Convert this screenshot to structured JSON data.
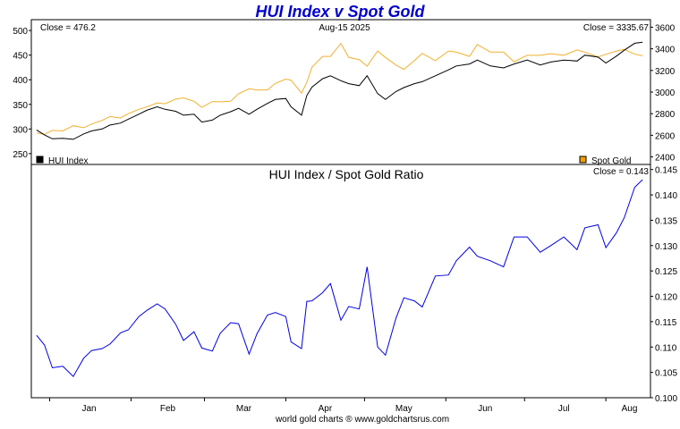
{
  "title": "HUI Index v Spot Gold",
  "footer": "world gold charts ® www.goldchartsrus.com",
  "colors": {
    "hui": "#000000",
    "gold": "#f0b030",
    "ratio": "#0000dd",
    "title": "#0000cc",
    "gold_legend": "#f0a000"
  },
  "chart_data": [
    {
      "type": "line",
      "top_left_label": "Close = 476.2",
      "date_label": "Aug-15  2025",
      "top_right_label": "Close = 3335.67",
      "x_ticks": [
        "Jan",
        "Feb",
        "Mar",
        "Apr",
        "May",
        "Jun",
        "Jul",
        "Aug"
      ],
      "y_left_ticks": [
        "250",
        "300",
        "350",
        "400",
        "450",
        "500"
      ],
      "y_left_range": [
        228,
        522
      ],
      "y_right_ticks": [
        "2400",
        "2600",
        "2800",
        "3000",
        "3200",
        "3400",
        "3600"
      ],
      "y_right_range": [
        2330,
        3670
      ],
      "series": [
        {
          "name": "HUI Index",
          "axis": "left",
          "x": [
            "2024-12-27",
            "2024-12-30",
            "2025-01-02",
            "2025-01-06",
            "2025-01-10",
            "2025-01-14",
            "2025-01-17",
            "2025-01-21",
            "2025-01-24",
            "2025-01-28",
            "2025-01-31",
            "2025-02-04",
            "2025-02-07",
            "2025-02-11",
            "2025-02-14",
            "2025-02-18",
            "2025-02-21",
            "2025-02-25",
            "2025-02-28",
            "2025-03-04",
            "2025-03-07",
            "2025-03-11",
            "2025-03-14",
            "2025-03-18",
            "2025-03-21",
            "2025-03-25",
            "2025-03-28",
            "2025-04-01",
            "2025-04-03",
            "2025-04-07",
            "2025-04-09",
            "2025-04-11",
            "2025-04-15",
            "2025-04-18",
            "2025-04-22",
            "2025-04-25",
            "2025-04-29",
            "2025-05-02",
            "2025-05-06",
            "2025-05-09",
            "2025-05-13",
            "2025-05-16",
            "2025-05-20",
            "2025-05-23",
            "2025-05-28",
            "2025-06-02",
            "2025-06-05",
            "2025-06-10",
            "2025-06-13",
            "2025-06-18",
            "2025-06-23",
            "2025-06-27",
            "2025-07-02",
            "2025-07-07",
            "2025-07-11",
            "2025-07-16",
            "2025-07-21",
            "2025-07-24",
            "2025-07-29",
            "2025-08-01",
            "2025-08-05",
            "2025-08-08",
            "2025-08-12",
            "2025-08-15"
          ],
          "values": [
            298,
            288,
            280,
            281,
            279,
            290,
            296,
            300,
            308,
            312,
            320,
            330,
            338,
            345,
            340,
            336,
            328,
            330,
            314,
            318,
            328,
            335,
            342,
            330,
            340,
            352,
            360,
            362,
            345,
            328,
            368,
            385,
            402,
            408,
            398,
            392,
            388,
            408,
            372,
            360,
            376,
            384,
            392,
            396,
            408,
            420,
            428,
            432,
            440,
            428,
            424,
            432,
            440,
            430,
            436,
            440,
            438,
            450,
            446,
            434,
            448,
            460,
            474,
            476.2
          ]
        },
        {
          "name": "Spot Gold",
          "axis": "right",
          "x": [
            "2024-12-27",
            "2024-12-30",
            "2025-01-02",
            "2025-01-06",
            "2025-01-10",
            "2025-01-14",
            "2025-01-17",
            "2025-01-21",
            "2025-01-24",
            "2025-01-28",
            "2025-01-31",
            "2025-02-04",
            "2025-02-07",
            "2025-02-11",
            "2025-02-14",
            "2025-02-18",
            "2025-02-21",
            "2025-02-25",
            "2025-02-28",
            "2025-03-04",
            "2025-03-07",
            "2025-03-11",
            "2025-03-14",
            "2025-03-18",
            "2025-03-21",
            "2025-03-25",
            "2025-03-28",
            "2025-04-01",
            "2025-04-03",
            "2025-04-07",
            "2025-04-09",
            "2025-04-11",
            "2025-04-15",
            "2025-04-18",
            "2025-04-22",
            "2025-04-25",
            "2025-04-29",
            "2025-05-02",
            "2025-05-06",
            "2025-05-09",
            "2025-05-13",
            "2025-05-16",
            "2025-05-20",
            "2025-05-23",
            "2025-05-28",
            "2025-06-02",
            "2025-06-05",
            "2025-06-10",
            "2025-06-13",
            "2025-06-18",
            "2025-06-23",
            "2025-06-27",
            "2025-07-02",
            "2025-07-07",
            "2025-07-11",
            "2025-07-16",
            "2025-07-21",
            "2025-07-24",
            "2025-07-29",
            "2025-08-01",
            "2025-08-05",
            "2025-08-08",
            "2025-08-12",
            "2025-08-15"
          ],
          "values": [
            2622,
            2608,
            2645,
            2640,
            2688,
            2670,
            2704,
            2738,
            2773,
            2760,
            2800,
            2840,
            2862,
            2900,
            2892,
            2935,
            2946,
            2915,
            2858,
            2912,
            2910,
            2915,
            2984,
            3030,
            3020,
            3020,
            3080,
            3120,
            3110,
            2990,
            3090,
            3230,
            3330,
            3330,
            3450,
            3320,
            3300,
            3240,
            3380,
            3320,
            3250,
            3210,
            3290,
            3358,
            3290,
            3380,
            3370,
            3330,
            3440,
            3370,
            3370,
            3280,
            3340,
            3340,
            3355,
            3340,
            3390,
            3370,
            3325,
            3350,
            3380,
            3395,
            3350,
            3335.67
          ]
        }
      ],
      "legend": [
        "HUI Index",
        "Spot Gold"
      ],
      "grid": false
    },
    {
      "type": "line",
      "title": "HUI Index  /  Spot Gold Ratio",
      "top_right_label": "Close = 0.143",
      "x_ticks": [
        "Jan",
        "Feb",
        "Mar",
        "Apr",
        "May",
        "Jun",
        "Jul",
        "Aug"
      ],
      "y_right_ticks": [
        "0.100",
        "0.105",
        "0.110",
        "0.115",
        "0.120",
        "0.125",
        "0.130",
        "0.135",
        "0.140",
        "0.145"
      ],
      "y_range": [
        0.1,
        0.146
      ],
      "series": [
        {
          "x": [
            "2024-12-27",
            "2024-12-30",
            "2025-01-02",
            "2025-01-06",
            "2025-01-10",
            "2025-01-14",
            "2025-01-17",
            "2025-01-21",
            "2025-01-24",
            "2025-01-28",
            "2025-01-31",
            "2025-02-04",
            "2025-02-07",
            "2025-02-11",
            "2025-02-14",
            "2025-02-18",
            "2025-02-21",
            "2025-02-25",
            "2025-02-28",
            "2025-03-04",
            "2025-03-07",
            "2025-03-11",
            "2025-03-14",
            "2025-03-18",
            "2025-03-21",
            "2025-03-25",
            "2025-03-28",
            "2025-04-01",
            "2025-04-03",
            "2025-04-07",
            "2025-04-09",
            "2025-04-11",
            "2025-04-15",
            "2025-04-18",
            "2025-04-22",
            "2025-04-25",
            "2025-04-29",
            "2025-05-02",
            "2025-05-06",
            "2025-05-09",
            "2025-05-13",
            "2025-05-16",
            "2025-05-20",
            "2025-05-23",
            "2025-05-28",
            "2025-06-02",
            "2025-06-05",
            "2025-06-10",
            "2025-06-13",
            "2025-06-18",
            "2025-06-23",
            "2025-06-27",
            "2025-07-02",
            "2025-07-07",
            "2025-07-11",
            "2025-07-16",
            "2025-07-21",
            "2025-07-24",
            "2025-07-29",
            "2025-08-01",
            "2025-08-05",
            "2025-08-08",
            "2025-08-12",
            "2025-08-15"
          ],
          "values": [
            0.1123,
            0.1104,
            0.1059,
            0.1062,
            0.1042,
            0.1078,
            0.1093,
            0.1097,
            0.1106,
            0.1128,
            0.1134,
            0.116,
            0.1172,
            0.1185,
            0.1175,
            0.1145,
            0.1113,
            0.113,
            0.1098,
            0.1092,
            0.1127,
            0.1148,
            0.1146,
            0.1086,
            0.1126,
            0.1163,
            0.1168,
            0.116,
            0.111,
            0.1097,
            0.119,
            0.1191,
            0.1207,
            0.1225,
            0.1153,
            0.118,
            0.1175,
            0.1258,
            0.11,
            0.1084,
            0.1157,
            0.1197,
            0.1191,
            0.1179,
            0.124,
            0.1242,
            0.127,
            0.1297,
            0.1279,
            0.127,
            0.1258,
            0.1317,
            0.1317,
            0.1287,
            0.13,
            0.1317,
            0.1292,
            0.1335,
            0.1341,
            0.1296,
            0.1325,
            0.1355,
            0.1415,
            0.143
          ]
        }
      ],
      "grid": false
    }
  ]
}
